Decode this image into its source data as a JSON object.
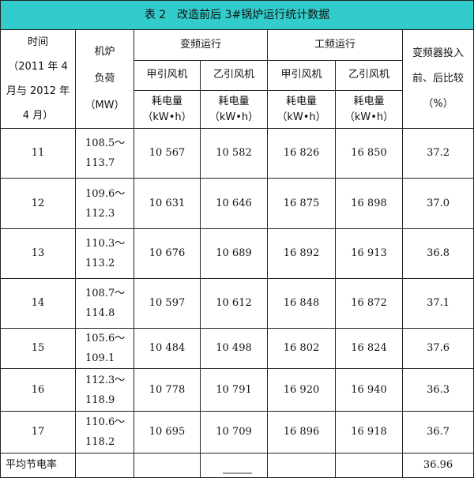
{
  "title": "表 2　改造前后 3#锅炉运行统计数据",
  "header": {
    "time": [
      "时间",
      "（2011 年 4",
      "月与 2012 年",
      "4 月）"
    ],
    "load": [
      "机炉",
      "负荷",
      "（MW）"
    ],
    "vf": "变频运行",
    "pf": "工频运行",
    "fan_a": "甲引风机",
    "fan_b": "乙引风机",
    "energy": "耗电量",
    "unit": "（kW•h）",
    "ratio": [
      "变频器投入",
      "前、后比较",
      "（%）"
    ]
  },
  "rows": [
    {
      "day": "11",
      "load": [
        "108.5～",
        "113.7"
      ],
      "vf_a": "10 567",
      "vf_b": "10 582",
      "pf_a": "16 826",
      "pf_b": "16 850",
      "ratio": "37.2"
    },
    {
      "day": "12",
      "load": [
        "109.6～",
        "112.3"
      ],
      "vf_a": "10 631",
      "vf_b": "10 646",
      "pf_a": "16 875",
      "pf_b": "16 898",
      "ratio": "37.0"
    },
    {
      "day": "13",
      "load": [
        "110.3～",
        "113.2"
      ],
      "vf_a": "10 676",
      "vf_b": "10 689",
      "pf_a": "16 892",
      "pf_b": "16 913",
      "ratio": "36.8"
    },
    {
      "day": "14",
      "load": [
        "108.7～",
        "114.8"
      ],
      "vf_a": "10 597",
      "vf_b": "10 612",
      "pf_a": "16 848",
      "pf_b": "16 872",
      "ratio": "37.1"
    },
    {
      "day": "15",
      "load": [
        "105.6～",
        "109.1"
      ],
      "vf_a": "10 484",
      "vf_b": "10 498",
      "pf_a": "16 802",
      "pf_b": "16 824",
      "ratio": "37.6"
    },
    {
      "day": "16",
      "load": [
        "112.3～",
        "118.9"
      ],
      "vf_a": "10 778",
      "vf_b": "10 791",
      "pf_a": "16 920",
      "pf_b": "16 940",
      "ratio": "36.3"
    },
    {
      "day": "17",
      "load": [
        "110.6～",
        "118.2"
      ],
      "vf_a": "10 695",
      "vf_b": "10 709",
      "pf_a": "16 896",
      "pf_b": "16 918",
      "ratio": "36.7"
    }
  ],
  "footer": {
    "label": "平均节电率",
    "value": "36.96"
  },
  "colors": {
    "title_bg": "#33cccc"
  }
}
